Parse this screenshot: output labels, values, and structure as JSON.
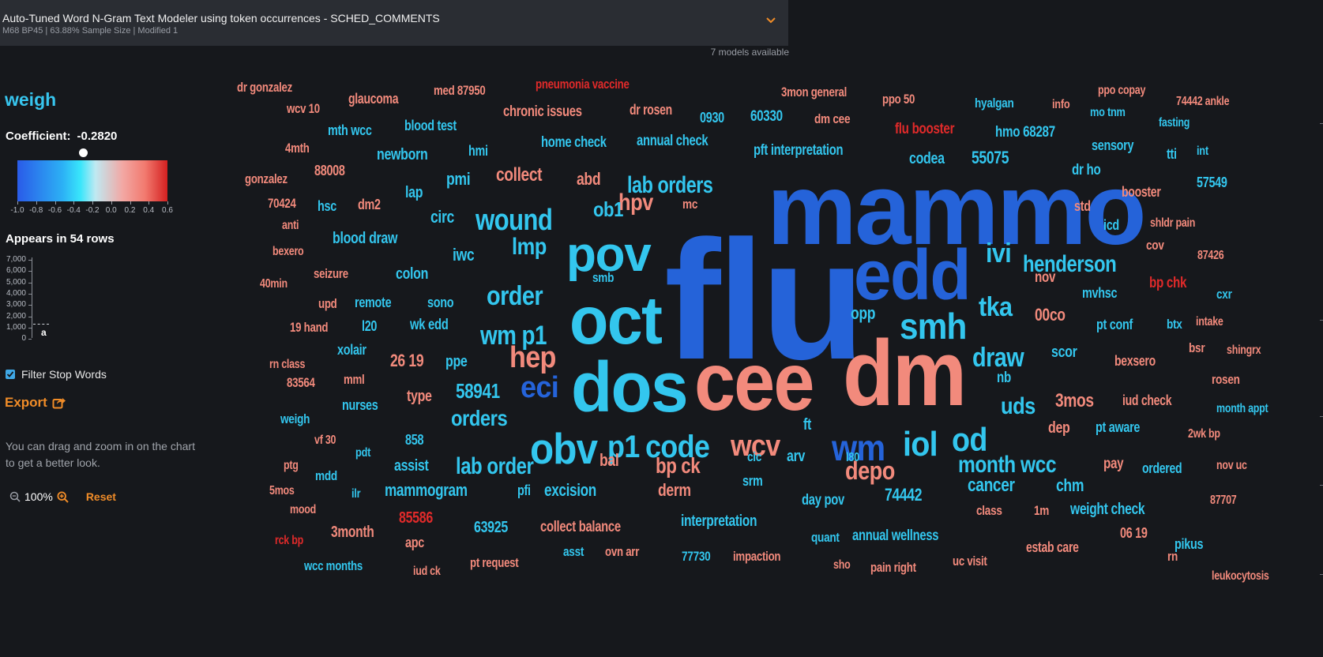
{
  "header": {
    "title": "Auto-Tuned Word N-Gram Text Modeler using token occurrences - SCHED_COMMENTS",
    "subtitle": "M68 BP45 | 63.88% Sample Size | Modified 1",
    "models_available": "7 models available",
    "chevron_icon": "chevron-down-icon"
  },
  "sidebar": {
    "feature": "weigh",
    "coefficient_label": "Coefficient:",
    "coefficient_value": "-0.2820",
    "coefficient": -0.282,
    "colorbar_labels": [
      "-1.0",
      "-0.8",
      "-0.6",
      "-0.4",
      "-0.2",
      "0.0",
      "0.2",
      "0.4",
      "0.6"
    ],
    "appears_text": "Appears in 54 rows",
    "histogram": {
      "y_ticks": [
        "7,000",
        "6,000",
        "5,000",
        "4,000",
        "3,000",
        "2,000",
        "1,000",
        "0"
      ],
      "bar_label": "a"
    },
    "filter_stop_words": "Filter Stop Words",
    "filter_checked": true,
    "export_label": "Export",
    "hint": "You can drag and zoom in on the chart to get a better look.",
    "zoom_level": "100%",
    "reset_label": "Reset"
  },
  "colors": {
    "accent": "#f08c28",
    "word_blue": "#2563d9",
    "word_cyan": "#33c6ee",
    "word_salmon": "#f28a7c",
    "word_red": "#e02a2a"
  },
  "words": [
    {
      "t": "flu",
      "c": "blue"
    },
    {
      "t": "mammo",
      "c": "blue"
    },
    {
      "t": "cee",
      "c": "salmon"
    },
    {
      "t": "dm",
      "c": "salmon"
    },
    {
      "t": "oct",
      "c": "cyan"
    },
    {
      "t": "dos",
      "c": "cyan"
    },
    {
      "t": "edd",
      "c": "blue"
    },
    {
      "t": "pov",
      "c": "cyan"
    },
    {
      "t": "obv",
      "c": "cyan"
    },
    {
      "t": "smh",
      "c": "cyan"
    },
    {
      "t": "wm",
      "c": "blue"
    },
    {
      "t": "iol",
      "c": "cyan"
    },
    {
      "t": "od",
      "c": "cyan"
    },
    {
      "t": "code",
      "c": "cyan"
    },
    {
      "t": "p1",
      "c": "cyan"
    },
    {
      "t": "wcv",
      "c": "salmon"
    },
    {
      "t": "eci",
      "c": "blue"
    },
    {
      "t": "hep",
      "c": "salmon"
    },
    {
      "t": "wound",
      "c": "cyan"
    },
    {
      "t": "lab orders",
      "c": "cyan"
    },
    {
      "t": "order",
      "c": "cyan"
    },
    {
      "t": "wm p1",
      "c": "cyan"
    },
    {
      "t": "henderson",
      "c": "cyan"
    },
    {
      "t": "draw",
      "c": "cyan"
    },
    {
      "t": "tka",
      "c": "cyan"
    },
    {
      "t": "ivi",
      "c": "cyan"
    },
    {
      "t": "month wcc",
      "c": "cyan"
    },
    {
      "t": "depo",
      "c": "salmon"
    },
    {
      "t": "lab order",
      "c": "cyan"
    },
    {
      "t": "uds",
      "c": "cyan"
    },
    {
      "t": "orders",
      "c": "cyan"
    },
    {
      "t": "58941",
      "c": "cyan"
    },
    {
      "t": "lmp",
      "c": "cyan"
    },
    {
      "t": "hpv",
      "c": "salmon"
    },
    {
      "t": "collect",
      "c": "salmon"
    },
    {
      "t": "ob1",
      "c": "cyan"
    },
    {
      "t": "bp ck",
      "c": "salmon"
    },
    {
      "t": "3mos",
      "c": "salmon"
    },
    {
      "t": "cancer",
      "c": "cyan"
    },
    {
      "t": "mammogram",
      "c": "cyan"
    },
    {
      "t": "excision",
      "c": "cyan"
    },
    {
      "t": "74442",
      "c": "cyan"
    },
    {
      "t": "interpretation",
      "c": "cyan"
    },
    {
      "t": "annual wellness",
      "c": "cyan"
    },
    {
      "t": "weight check",
      "c": "cyan"
    },
    {
      "t": "pft interpretation",
      "c": "cyan"
    },
    {
      "t": "annual check",
      "c": "cyan"
    },
    {
      "t": "home check",
      "c": "cyan"
    },
    {
      "t": "blood draw",
      "c": "cyan"
    },
    {
      "t": "newborn",
      "c": "cyan"
    },
    {
      "t": "codea",
      "c": "cyan"
    },
    {
      "t": "55075",
      "c": "cyan"
    },
    {
      "t": "hmo 68287",
      "c": "cyan"
    },
    {
      "t": "chronic issues",
      "c": "salmon"
    },
    {
      "t": "pneumonia vaccine",
      "c": "red"
    },
    {
      "t": "flu booster",
      "c": "red"
    },
    {
      "t": "bp chk",
      "c": "red"
    },
    {
      "t": "85586",
      "c": "red"
    },
    {
      "t": "collect balance",
      "c": "salmon"
    },
    {
      "t": "63925",
      "c": "cyan"
    },
    {
      "t": "3month",
      "c": "salmon"
    },
    {
      "t": "derm",
      "c": "salmon"
    },
    {
      "t": "bal",
      "c": "salmon"
    },
    {
      "t": "type",
      "c": "salmon"
    },
    {
      "t": "26 19",
      "c": "salmon"
    },
    {
      "t": "ppe",
      "c": "cyan"
    },
    {
      "t": "colon",
      "c": "cyan"
    },
    {
      "t": "circ",
      "c": "cyan"
    },
    {
      "t": "iwc",
      "c": "cyan"
    },
    {
      "t": "abd",
      "c": "salmon"
    },
    {
      "t": "pmi",
      "c": "cyan"
    },
    {
      "t": "lap",
      "c": "cyan"
    },
    {
      "t": "hmi",
      "c": "cyan"
    },
    {
      "t": "blood test",
      "c": "cyan"
    },
    {
      "t": "mth wcc",
      "c": "cyan"
    },
    {
      "t": "glaucoma",
      "c": "salmon"
    },
    {
      "t": "med 87950",
      "c": "salmon"
    },
    {
      "t": "dr gonzalez",
      "c": "salmon"
    },
    {
      "t": "wcv 10",
      "c": "salmon"
    },
    {
      "t": "4mth",
      "c": "salmon"
    },
    {
      "t": "gonzalez",
      "c": "salmon"
    },
    {
      "t": "88008",
      "c": "salmon"
    },
    {
      "t": "70424",
      "c": "salmon"
    },
    {
      "t": "hsc",
      "c": "cyan"
    },
    {
      "t": "dm2",
      "c": "salmon"
    },
    {
      "t": "anti",
      "c": "salmon"
    },
    {
      "t": "bexero",
      "c": "salmon"
    },
    {
      "t": "seizure",
      "c": "salmon"
    },
    {
      "t": "40min",
      "c": "salmon"
    },
    {
      "t": "upd",
      "c": "salmon"
    },
    {
      "t": "remote",
      "c": "cyan"
    },
    {
      "t": "sono",
      "c": "cyan"
    },
    {
      "t": "19 hand",
      "c": "salmon"
    },
    {
      "t": "l20",
      "c": "cyan"
    },
    {
      "t": "wk edd",
      "c": "cyan"
    },
    {
      "t": "xolair",
      "c": "cyan"
    },
    {
      "t": "rn class",
      "c": "salmon"
    },
    {
      "t": "83564",
      "c": "salmon"
    },
    {
      "t": "mml",
      "c": "salmon"
    },
    {
      "t": "nurses",
      "c": "cyan"
    },
    {
      "t": "weigh",
      "c": "cyan"
    },
    {
      "t": "vf 30",
      "c": "salmon"
    },
    {
      "t": "858",
      "c": "cyan"
    },
    {
      "t": "ptg",
      "c": "salmon"
    },
    {
      "t": "pdt",
      "c": "cyan"
    },
    {
      "t": "assist",
      "c": "cyan"
    },
    {
      "t": "5mos",
      "c": "salmon"
    },
    {
      "t": "mdd",
      "c": "cyan"
    },
    {
      "t": "ilr",
      "c": "cyan"
    },
    {
      "t": "pfi",
      "c": "cyan"
    },
    {
      "t": "mood",
      "c": "salmon"
    },
    {
      "t": "rck bp",
      "c": "red"
    },
    {
      "t": "wcc months",
      "c": "cyan"
    },
    {
      "t": "apc",
      "c": "salmon"
    },
    {
      "t": "iud ck",
      "c": "salmon"
    },
    {
      "t": "pt request",
      "c": "salmon"
    },
    {
      "t": "asst",
      "c": "cyan"
    },
    {
      "t": "ovn arr",
      "c": "salmon"
    },
    {
      "t": "77730",
      "c": "cyan"
    },
    {
      "t": "impaction",
      "c": "salmon"
    },
    {
      "t": "quant",
      "c": "cyan"
    },
    {
      "t": "sho",
      "c": "salmon"
    },
    {
      "t": "pain right",
      "c": "salmon"
    },
    {
      "t": "uc visit",
      "c": "salmon"
    },
    {
      "t": "estab care",
      "c": "salmon"
    },
    {
      "t": "06 19",
      "c": "salmon"
    },
    {
      "t": "rn",
      "c": "salmon"
    },
    {
      "t": "pikus",
      "c": "cyan"
    },
    {
      "t": "leukocytosis",
      "c": "salmon"
    },
    {
      "t": "87707",
      "c": "salmon"
    },
    {
      "t": "class",
      "c": "salmon"
    },
    {
      "t": "1m",
      "c": "salmon"
    },
    {
      "t": "chm",
      "c": "cyan"
    },
    {
      "t": "pay",
      "c": "salmon"
    },
    {
      "t": "ordered",
      "c": "cyan"
    },
    {
      "t": "nov uc",
      "c": "salmon"
    },
    {
      "t": "dep",
      "c": "salmon"
    },
    {
      "t": "pt aware",
      "c": "cyan"
    },
    {
      "t": "2wk bp",
      "c": "salmon"
    },
    {
      "t": "iud check",
      "c": "salmon"
    },
    {
      "t": "month appt",
      "c": "cyan"
    },
    {
      "t": "rosen",
      "c": "salmon"
    },
    {
      "t": "bexsero",
      "c": "salmon"
    },
    {
      "t": "nb",
      "c": "cyan"
    },
    {
      "t": "scor",
      "c": "cyan"
    },
    {
      "t": "bsr",
      "c": "salmon"
    },
    {
      "t": "shingrx",
      "c": "salmon"
    },
    {
      "t": "intake",
      "c": "salmon"
    },
    {
      "t": "btx",
      "c": "cyan"
    },
    {
      "t": "pt conf",
      "c": "cyan"
    },
    {
      "t": "00co",
      "c": "salmon"
    },
    {
      "t": "opp",
      "c": "cyan"
    },
    {
      "t": "mvhsc",
      "c": "cyan"
    },
    {
      "t": "cxr",
      "c": "cyan"
    },
    {
      "t": "nov",
      "c": "salmon"
    },
    {
      "t": "87426",
      "c": "salmon"
    },
    {
      "t": "cov",
      "c": "salmon"
    },
    {
      "t": "shldr pain",
      "c": "salmon"
    },
    {
      "t": "icd",
      "c": "cyan"
    },
    {
      "t": "std",
      "c": "salmon"
    },
    {
      "t": "booster",
      "c": "salmon"
    },
    {
      "t": "57549",
      "c": "cyan"
    },
    {
      "t": "dr ho",
      "c": "cyan"
    },
    {
      "t": "tti",
      "c": "cyan"
    },
    {
      "t": "int",
      "c": "cyan"
    },
    {
      "t": "sensory",
      "c": "cyan"
    },
    {
      "t": "fasting",
      "c": "cyan"
    },
    {
      "t": "mo tnm",
      "c": "cyan"
    },
    {
      "t": "info",
      "c": "salmon"
    },
    {
      "t": "hyalgan",
      "c": "cyan"
    },
    {
      "t": "ppo 50",
      "c": "salmon"
    },
    {
      "t": "ppo copay",
      "c": "salmon"
    },
    {
      "t": "74442 ankle",
      "c": "salmon"
    },
    {
      "t": "3mon general",
      "c": "salmon"
    },
    {
      "t": "dm cee",
      "c": "salmon"
    },
    {
      "t": "60330",
      "c": "cyan"
    },
    {
      "t": "0930",
      "c": "cyan"
    },
    {
      "t": "dr rosen",
      "c": "salmon"
    },
    {
      "t": "mc",
      "c": "salmon"
    },
    {
      "t": "smb",
      "c": "cyan"
    },
    {
      "t": "ft",
      "c": "cyan"
    },
    {
      "t": "arv",
      "c": "cyan"
    },
    {
      "t": "cic",
      "c": "cyan"
    },
    {
      "t": "srm",
      "c": "cyan"
    },
    {
      "t": "l80",
      "c": "cyan"
    },
    {
      "t": "day pov",
      "c": "cyan"
    }
  ]
}
